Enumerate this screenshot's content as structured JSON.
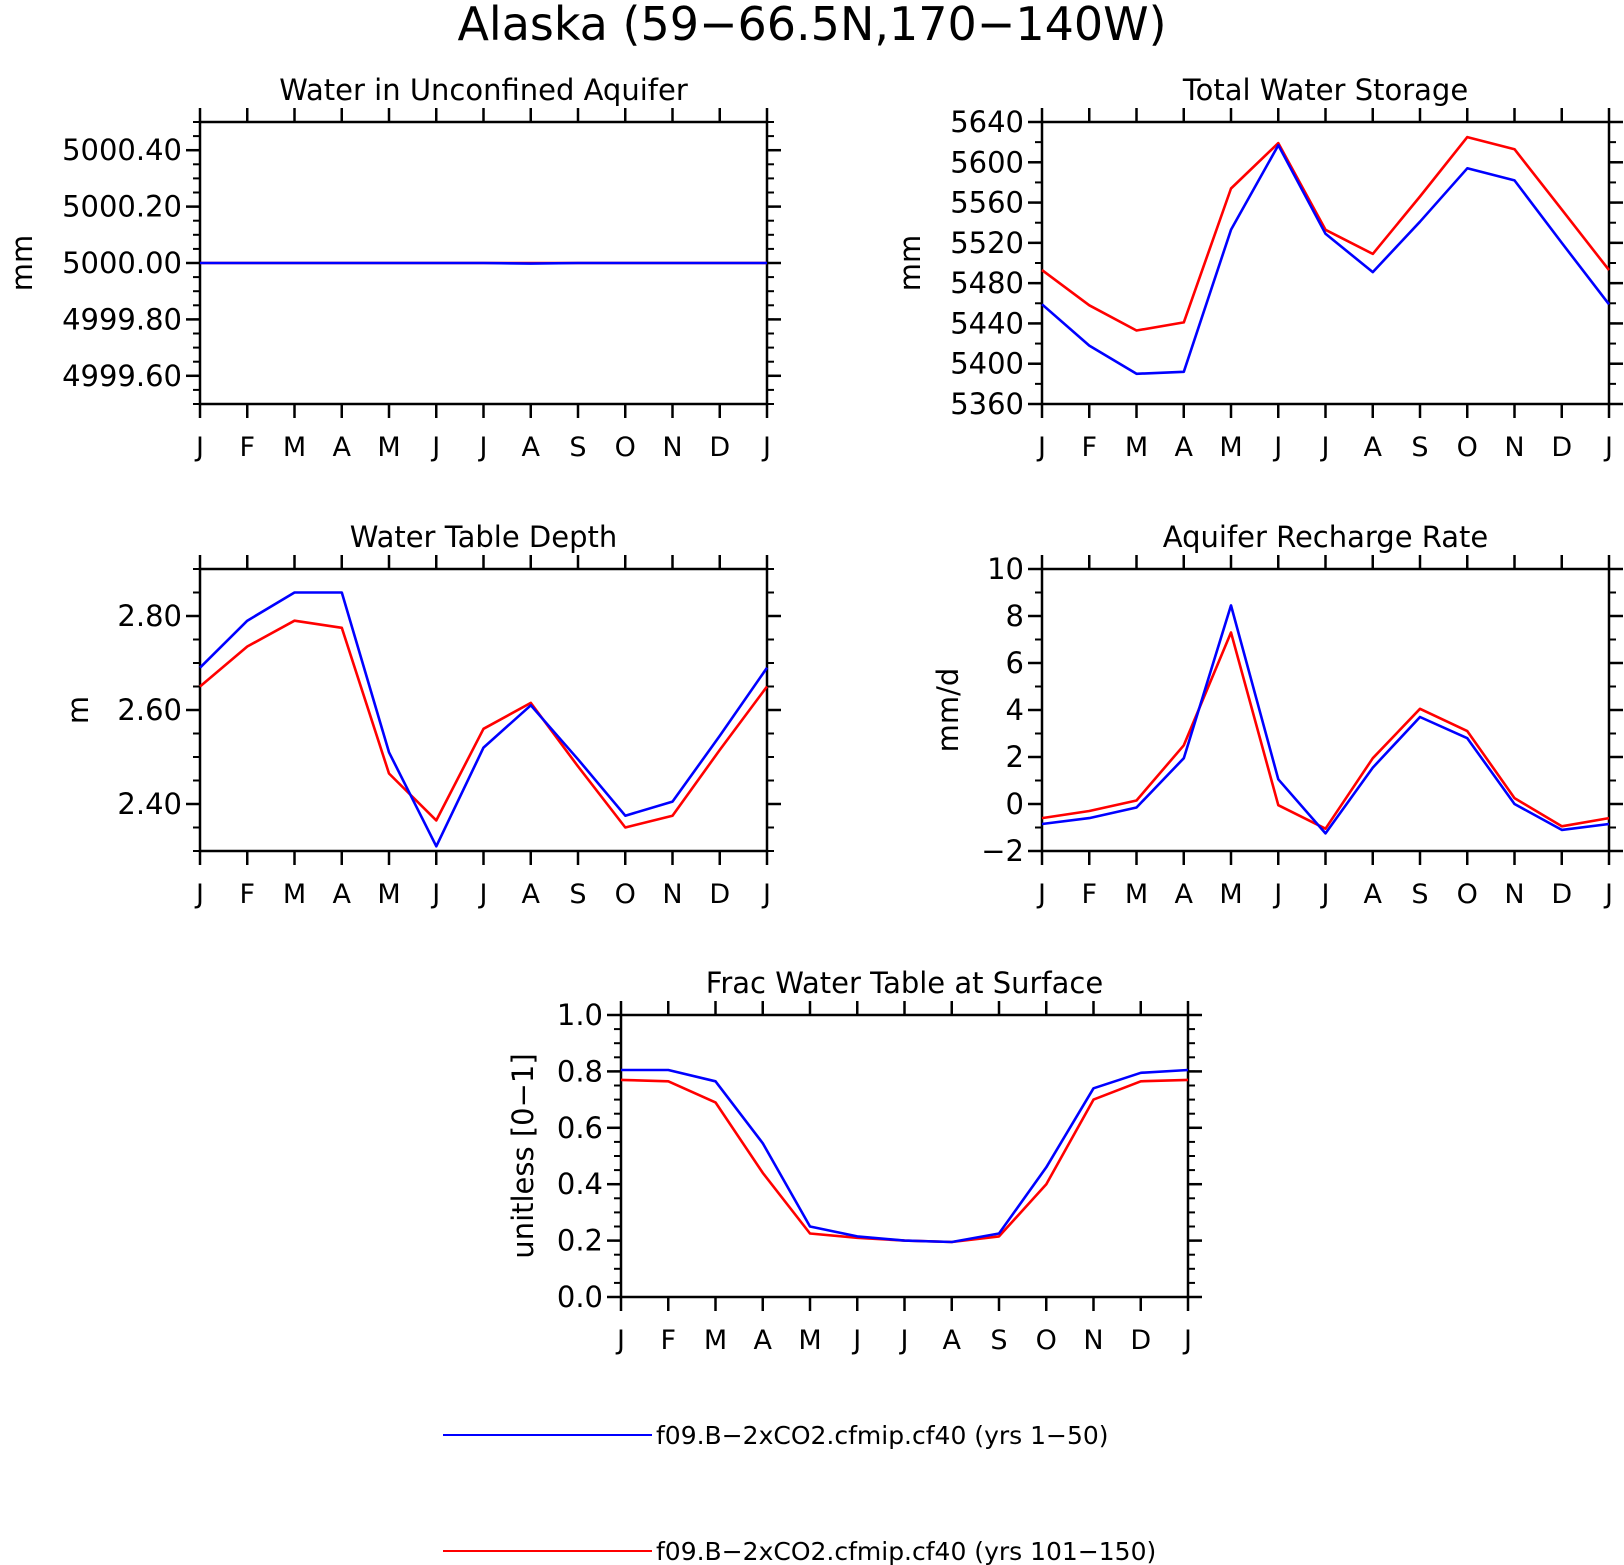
{
  "figure_title": "Alaska (59−66.5N,170−140W)",
  "months": [
    "J",
    "F",
    "M",
    "A",
    "M",
    "J",
    "J",
    "A",
    "S",
    "O",
    "N",
    "D",
    "J"
  ],
  "legend": [
    {
      "label": "f09.B−2xCO2.cfmip.cf40 (yrs 1−50)",
      "color": "#0000ff"
    },
    {
      "label": "f09.B−2xCO2.cfmip.cf40 (yrs 101−150)",
      "color": "#ff0000"
    }
  ],
  "chart_data": [
    {
      "type": "line",
      "title": "Water in Unconfined Aquifer",
      "ylabel": "mm",
      "ylim": [
        4999.5,
        5000.5
      ],
      "yticks": [
        4999.6,
        4999.8,
        5000.0,
        5000.2,
        5000.4
      ],
      "ytick_labels": [
        "4999.60",
        "4999.80",
        "5000.00",
        "5000.20",
        "5000.40"
      ],
      "yminor": 0.05,
      "series": [
        {
          "color": "#ff0000",
          "values": [
            5000.0,
            5000.0,
            5000.0,
            5000.0,
            5000.0,
            5000.0,
            5000.0,
            5000.0,
            5000.0,
            5000.0,
            5000.0,
            5000.0,
            5000.0
          ]
        },
        {
          "color": "#0000ff",
          "values": [
            5000.0,
            5000.0,
            5000.0,
            5000.0,
            5000.0,
            5000.0,
            5000.0,
            4999.998,
            5000.0,
            5000.0,
            5000.0,
            5000.0,
            5000.0
          ]
        }
      ]
    },
    {
      "type": "line",
      "title": "Total Water Storage",
      "ylabel": "mm",
      "ylim": [
        5360,
        5640
      ],
      "yticks": [
        5360,
        5400,
        5440,
        5480,
        5520,
        5560,
        5600,
        5640
      ],
      "ytick_labels": [
        "5360",
        "5400",
        "5440",
        "5480",
        "5520",
        "5560",
        "5600",
        "5640"
      ],
      "yminor": 20,
      "series": [
        {
          "color": "#ff0000",
          "values": [
            5493,
            5458,
            5433,
            5441,
            5574,
            5619,
            5533,
            5509,
            5566,
            5625,
            5613,
            5553,
            5493
          ]
        },
        {
          "color": "#0000ff",
          "values": [
            5459,
            5418,
            5390,
            5392,
            5533,
            5617,
            5529,
            5491,
            5541,
            5594,
            5582,
            5520,
            5459
          ]
        }
      ]
    },
    {
      "type": "line",
      "title": "Water Table Depth",
      "ylabel": "m",
      "ylim": [
        2.3,
        2.9
      ],
      "yticks": [
        2.4,
        2.6,
        2.8
      ],
      "ytick_labels": [
        "2.40",
        "2.60",
        "2.80"
      ],
      "yminor": 0.05,
      "series": [
        {
          "color": "#ff0000",
          "values": [
            2.65,
            2.735,
            2.79,
            2.775,
            2.465,
            2.365,
            2.56,
            2.615,
            2.48,
            2.35,
            2.375,
            2.515,
            2.65
          ]
        },
        {
          "color": "#0000ff",
          "values": [
            2.69,
            2.79,
            2.85,
            2.85,
            2.51,
            2.31,
            2.52,
            2.61,
            2.495,
            2.375,
            2.405,
            2.545,
            2.69
          ]
        }
      ]
    },
    {
      "type": "line",
      "title": "Aquifer Recharge Rate",
      "ylabel": "mm/d",
      "ylim": [
        -2,
        10
      ],
      "yticks": [
        -2,
        0,
        2,
        4,
        6,
        8,
        10
      ],
      "ytick_labels": [
        "−2",
        "0",
        "2",
        "4",
        "6",
        "8",
        "10"
      ],
      "yminor": 1,
      "series": [
        {
          "color": "#ff0000",
          "values": [
            -0.6,
            -0.3,
            0.15,
            2.5,
            7.3,
            -0.05,
            -1.05,
            1.95,
            4.05,
            3.1,
            0.25,
            -0.95,
            -0.6
          ]
        },
        {
          "color": "#0000ff",
          "values": [
            -0.85,
            -0.6,
            -0.15,
            1.95,
            8.45,
            1.05,
            -1.25,
            1.55,
            3.7,
            2.8,
            0.0,
            -1.1,
            -0.85
          ]
        }
      ]
    },
    {
      "type": "line",
      "title": "Frac Water Table at Surface",
      "ylabel": "unitless [0−1]",
      "ylim": [
        0,
        1
      ],
      "yticks": [
        0,
        0.2,
        0.4,
        0.6,
        0.8,
        1.0
      ],
      "ytick_labels": [
        "0.0",
        "0.2",
        "0.4",
        "0.6",
        "0.8",
        "1.0"
      ],
      "yminor": 0.05,
      "series": [
        {
          "color": "#ff0000",
          "values": [
            0.77,
            0.765,
            0.69,
            0.44,
            0.225,
            0.21,
            0.2,
            0.195,
            0.215,
            0.4,
            0.7,
            0.765,
            0.77
          ]
        },
        {
          "color": "#0000ff",
          "values": [
            0.805,
            0.805,
            0.765,
            0.545,
            0.25,
            0.215,
            0.2,
            0.195,
            0.225,
            0.46,
            0.74,
            0.795,
            0.805
          ]
        }
      ]
    }
  ]
}
